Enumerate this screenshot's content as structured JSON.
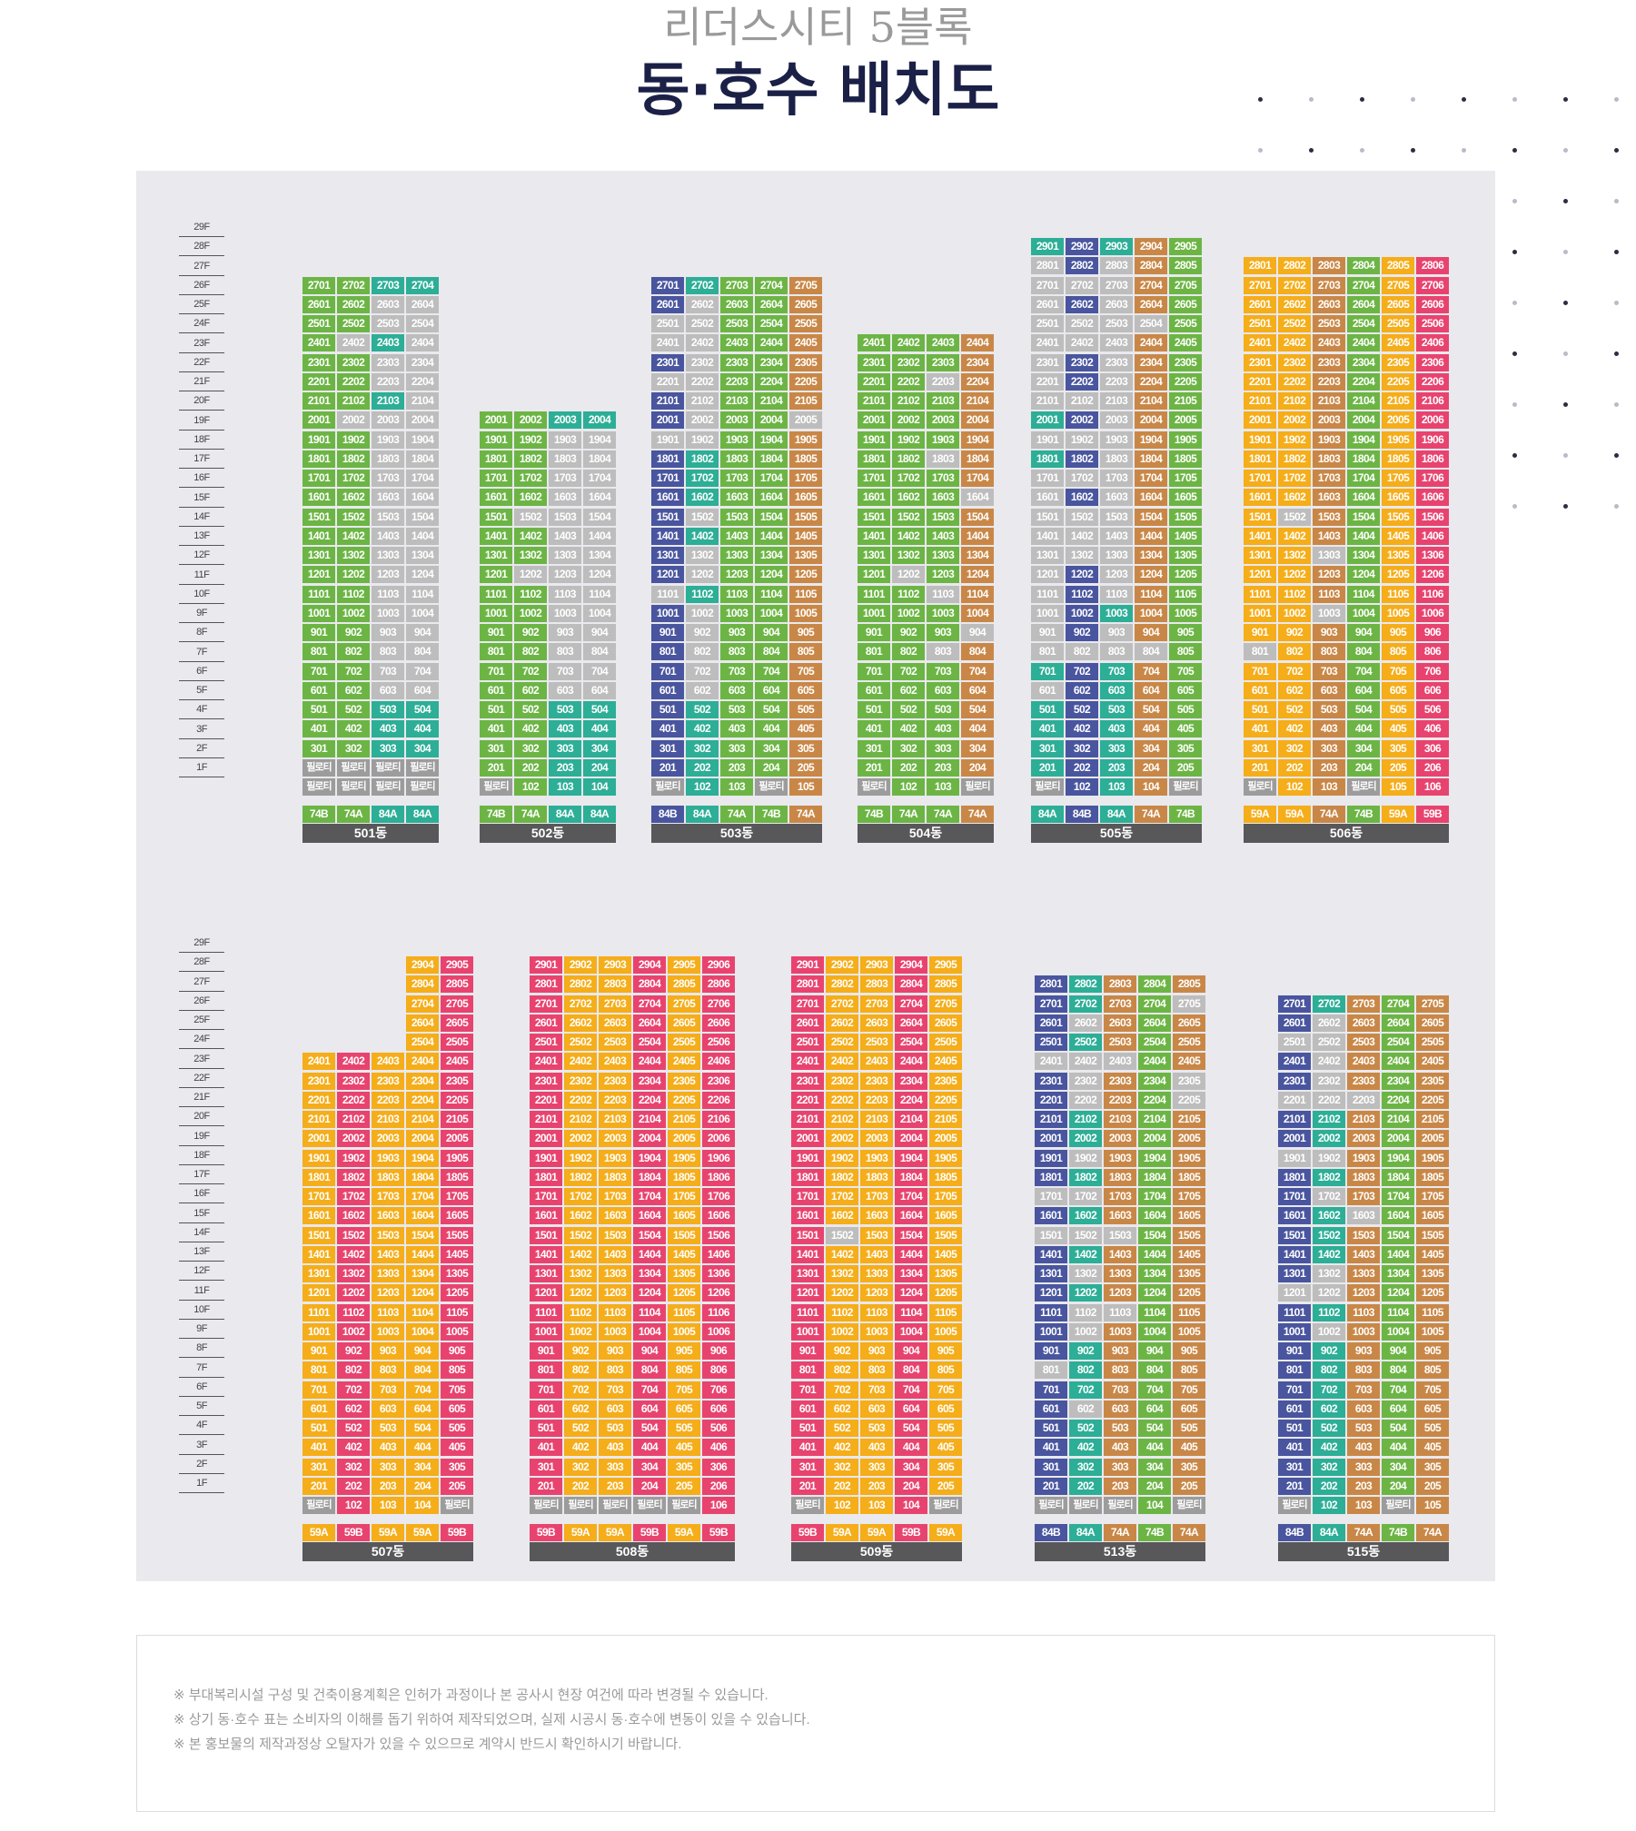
{
  "header": {
    "subtitle": "리더스시티 5블록",
    "title": "동·호수 배치도"
  },
  "colors": {
    "green": "#6cb545",
    "teal": "#2dae96",
    "navy": "#49559e",
    "brown": "#c98747",
    "gray": "#bdbdbd",
    "orange": "#f5ad1a",
    "pink": "#e8436f",
    "pilot": "#9c9c9c",
    "namebar": "#58585a"
  },
  "floor_labels": [
    "29F",
    "28F",
    "27F",
    "26F",
    "25F",
    "24F",
    "23F",
    "22F",
    "21F",
    "20F",
    "19F",
    "18F",
    "17F",
    "16F",
    "15F",
    "14F",
    "13F",
    "12F",
    "11F",
    "10F",
    "9F",
    "8F",
    "7F",
    "6F",
    "5F",
    "4F",
    "3F",
    "2F",
    "1F"
  ],
  "pilot_label": "필로티",
  "buildings": [
    {
      "name": "501동",
      "types": [
        "74B",
        "74A",
        "84A",
        "84A"
      ],
      "heights": [
        27,
        27,
        27,
        27
      ],
      "pilot1": [
        true,
        true,
        true,
        true
      ],
      "pilot2": [
        true,
        true,
        true,
        true
      ],
      "colors": [
        "green",
        "green",
        "teal",
        "teal"
      ],
      "gray": [
        "2002",
        "2402",
        "2003",
        "2203",
        "2303",
        "2503",
        "2603",
        "1003",
        "1103",
        "1203",
        "1303",
        "1403",
        "1503",
        "1603",
        "1703",
        "1803",
        "1903",
        "603",
        "703",
        "803",
        "903",
        "2004",
        "1004",
        "1104",
        "1204",
        "1304",
        "1404",
        "1504",
        "1604",
        "1704",
        "1804",
        "1904",
        "604",
        "704",
        "804",
        "904",
        "2104",
        "2204",
        "2304",
        "2404",
        "2504",
        "2604"
      ]
    },
    {
      "name": "502동",
      "types": [
        "74B",
        "74A",
        "84A",
        "84A"
      ],
      "heights": [
        20,
        20,
        20,
        20
      ],
      "pilot1": [
        true,
        false,
        false,
        false
      ],
      "pilot2": [
        false,
        false,
        false,
        false
      ],
      "colors": [
        "green",
        "green",
        "teal",
        "teal"
      ],
      "gray": [
        "1202",
        "1502",
        "1903",
        "1203",
        "1303",
        "1403",
        "1503",
        "1603",
        "1703",
        "1803",
        "1103",
        "1003",
        "903",
        "803",
        "703",
        "603",
        "1904",
        "1804",
        "1704",
        "1604",
        "1504",
        "1404",
        "1304",
        "1204",
        "1104",
        "1004",
        "904",
        "804",
        "704",
        "604"
      ]
    },
    {
      "name": "503동",
      "types": [
        "84B",
        "84A",
        "74A",
        "74B",
        "74A"
      ],
      "heights": [
        27,
        27,
        27,
        27,
        27
      ],
      "pilot1": [
        true,
        false,
        false,
        true,
        false
      ],
      "pilot2": [
        false,
        false,
        false,
        false,
        false
      ],
      "colors": [
        "navy",
        "teal",
        "green",
        "green",
        "brown"
      ],
      "gray": [
        "2501",
        "2401",
        "2201",
        "1901",
        "1101",
        "2602",
        "2502",
        "2402",
        "2302",
        "2202",
        "2102",
        "2002",
        "1902",
        "1502",
        "1302",
        "1202",
        "1002",
        "902",
        "802",
        "702",
        "602",
        "2005"
      ]
    },
    {
      "name": "504동",
      "types": [
        "74B",
        "74A",
        "74A",
        "74A"
      ],
      "heights": [
        24,
        24,
        24,
        24
      ],
      "pilot1": [
        true,
        false,
        false,
        true
      ],
      "pilot2": [
        false,
        false,
        false,
        false
      ],
      "colors": [
        "green",
        "green",
        "green",
        "brown"
      ],
      "gray": [
        "1202",
        "2203",
        "1803",
        "1103",
        "803",
        "1604",
        "904"
      ]
    },
    {
      "name": "505동",
      "types": [
        "84A",
        "84B",
        "84A",
        "74A",
        "74B"
      ],
      "heights": [
        29,
        29,
        29,
        29,
        29
      ],
      "pilot1": [
        true,
        false,
        false,
        false,
        true
      ],
      "pilot2": [
        false,
        false,
        false,
        false,
        false
      ],
      "colors": [
        "teal",
        "navy",
        "teal",
        "brown",
        "green"
      ],
      "gray": [
        "2801",
        "2701",
        "2601",
        "2501",
        "2401",
        "2301",
        "2201",
        "2101",
        "1901",
        "1701",
        "1601",
        "1501",
        "1401",
        "1301",
        "1201",
        "1101",
        "1001",
        "901",
        "801",
        "601",
        "2702",
        "2502",
        "2402",
        "2102",
        "1902",
        "1702",
        "1502",
        "1402",
        "1302",
        "802",
        "2803",
        "2703",
        "2603",
        "2503",
        "2403",
        "2303",
        "2203",
        "2103",
        "2003",
        "1903",
        "1803",
        "1703",
        "1603",
        "1503",
        "1403",
        "1303",
        "1203",
        "1103",
        "903",
        "803",
        "2504",
        "804"
      ]
    },
    {
      "name": "506동",
      "types": [
        "59A",
        "59A",
        "74A",
        "74B",
        "59A",
        "59B"
      ],
      "heights": [
        28,
        28,
        28,
        28,
        28,
        28
      ],
      "pilot1": [
        true,
        false,
        false,
        true,
        false,
        false
      ],
      "pilot2": [
        false,
        false,
        false,
        false,
        false,
        false
      ],
      "colors": [
        "orange",
        "orange",
        "brown",
        "green",
        "orange",
        "pink"
      ],
      "gray": [
        "801",
        "1502",
        "1303",
        "1003"
      ]
    },
    {
      "name": "507동",
      "types": [
        "59A",
        "59B",
        "59A",
        "59A",
        "59B"
      ],
      "heights": [
        24,
        24,
        24,
        29,
        29
      ],
      "pilot1": [
        true,
        false,
        false,
        false,
        true
      ],
      "pilot2": [
        false,
        false,
        false,
        false,
        false
      ],
      "colors": [
        "orange",
        "pink",
        "orange",
        "orange",
        "pink"
      ],
      "gray": []
    },
    {
      "name": "508동",
      "types": [
        "59B",
        "59A",
        "59A",
        "59B",
        "59A",
        "59B"
      ],
      "heights": [
        29,
        29,
        29,
        29,
        29,
        29
      ],
      "pilot1": [
        true,
        true,
        true,
        true,
        true,
        false
      ],
      "pilot2": [
        false,
        false,
        false,
        false,
        false,
        false
      ],
      "colors": [
        "pink",
        "orange",
        "orange",
        "pink",
        "orange",
        "pink"
      ],
      "gray": []
    },
    {
      "name": "509동",
      "types": [
        "59B",
        "59A",
        "59A",
        "59B",
        "59A"
      ],
      "heights": [
        29,
        29,
        29,
        29,
        29
      ],
      "pilot1": [
        true,
        false,
        false,
        false,
        true
      ],
      "pilot2": [
        false,
        false,
        false,
        false,
        false
      ],
      "colors": [
        "pink",
        "orange",
        "orange",
        "pink",
        "orange"
      ],
      "gray": [
        "1502"
      ]
    },
    {
      "name": "513동",
      "types": [
        "84B",
        "84A",
        "74A",
        "74B",
        "74A"
      ],
      "heights": [
        28,
        28,
        28,
        28,
        28
      ],
      "pilot1": [
        true,
        true,
        true,
        false,
        true
      ],
      "pilot2": [
        false,
        false,
        false,
        false,
        false
      ],
      "colors": [
        "navy",
        "teal",
        "brown",
        "green",
        "brown"
      ],
      "gray": [
        "2401",
        "1701",
        "1501",
        "801",
        "2602",
        "2402",
        "2302",
        "2202",
        "1902",
        "1702",
        "1502",
        "1302",
        "1102",
        "1002",
        "602",
        "2403",
        "1503",
        "1103",
        "2705",
        "2305",
        "2205"
      ]
    },
    {
      "name": "515동",
      "types": [
        "84B",
        "84A",
        "74A",
        "74B",
        "74A"
      ],
      "heights": [
        27,
        27,
        27,
        27,
        27
      ],
      "pilot1": [
        true,
        false,
        false,
        true,
        false
      ],
      "pilot2": [
        false,
        false,
        false,
        false,
        false
      ],
      "colors": [
        "navy",
        "teal",
        "brown",
        "green",
        "brown"
      ],
      "gray": [
        "2501",
        "2201",
        "1901",
        "1201",
        "2602",
        "2502",
        "2402",
        "2302",
        "2202",
        "1902",
        "1702",
        "1302",
        "1202",
        "1002",
        "2203",
        "1603"
      ]
    }
  ],
  "notes": [
    "※ 부대복리시설 구성 및 건축이용계획은 인허가 과정이나 본 공사시 현장 여건에 따라 변경될 수 있습니다.",
    "※ 상기 동·호수 표는 소비자의 이해를 돕기 위하여 제작되었으며, 실제 시공시 동·호수에 변동이 있을 수 있습니다.",
    "※ 본 홍보물의 제작과정상 오탈자가 있을 수 있으므로 계약시 반드시 확인하시기 바랍니다."
  ]
}
